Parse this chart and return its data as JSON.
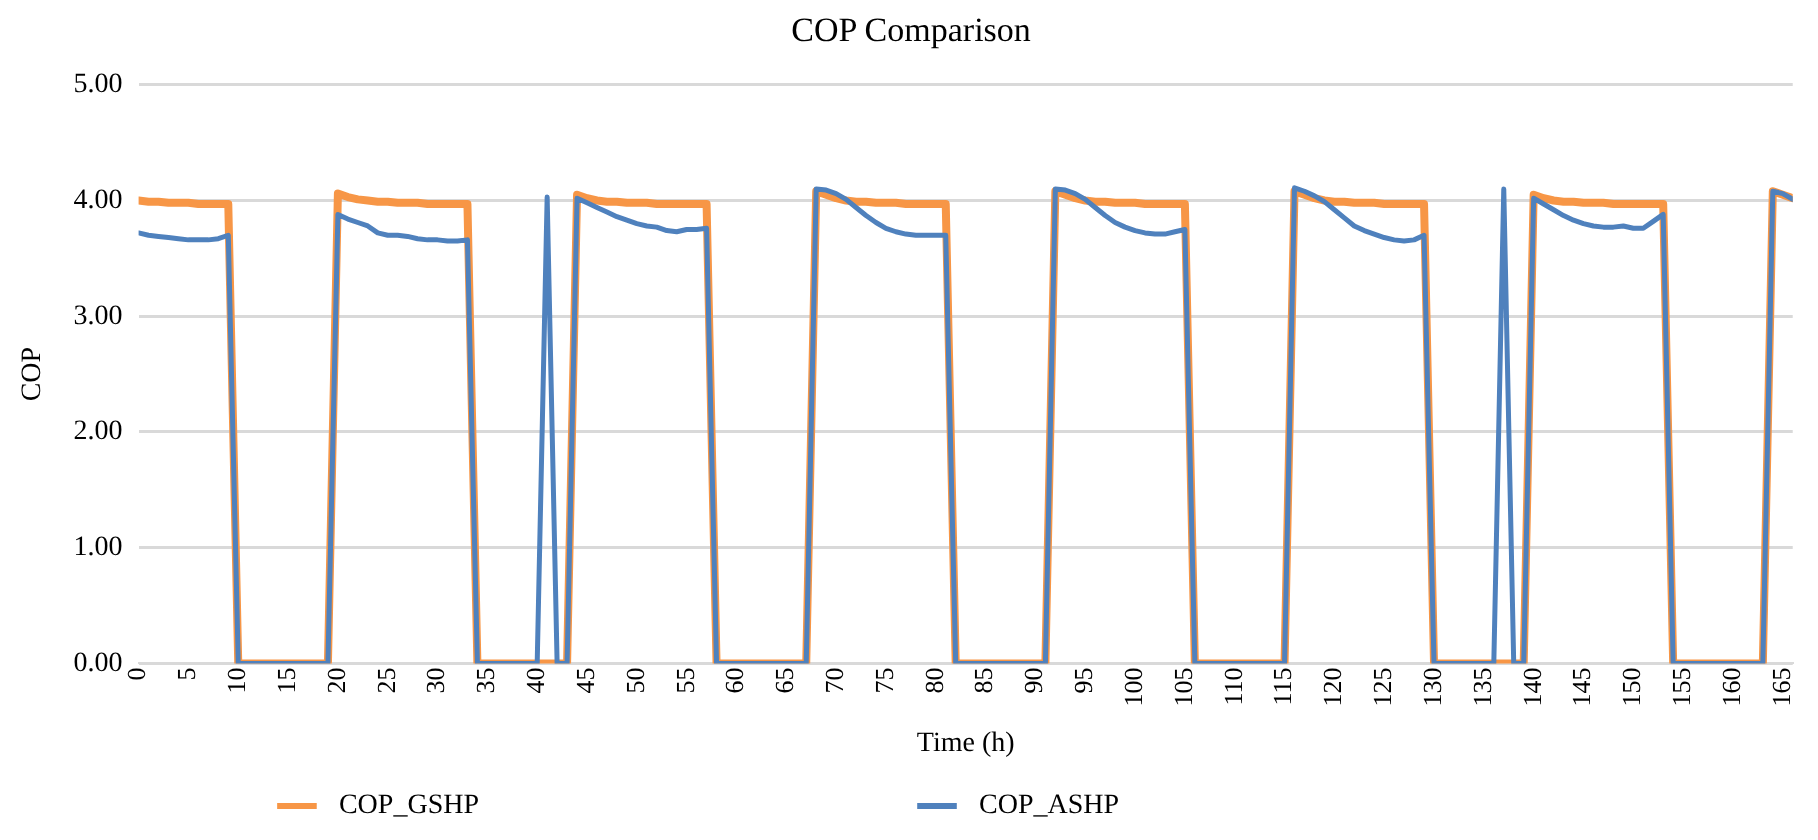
{
  "chart_data": {
    "type": "line",
    "title": "COP Comparison",
    "xlabel": "Time (h)",
    "ylabel": "COP",
    "x": [
      0,
      1,
      2,
      3,
      4,
      5,
      6,
      7,
      8,
      9,
      10,
      11,
      12,
      13,
      14,
      15,
      16,
      17,
      18,
      19,
      20,
      21,
      22,
      23,
      24,
      25,
      26,
      27,
      28,
      29,
      30,
      31,
      32,
      33,
      34,
      35,
      36,
      37,
      38,
      39,
      40,
      41,
      42,
      43,
      44,
      45,
      46,
      47,
      48,
      49,
      50,
      51,
      52,
      53,
      54,
      55,
      56,
      57,
      58,
      59,
      60,
      61,
      62,
      63,
      64,
      65,
      66,
      67,
      68,
      69,
      70,
      71,
      72,
      73,
      74,
      75,
      76,
      77,
      78,
      79,
      80,
      81,
      82,
      83,
      84,
      85,
      86,
      87,
      88,
      89,
      90,
      91,
      92,
      93,
      94,
      95,
      96,
      97,
      98,
      99,
      100,
      101,
      102,
      103,
      104,
      105,
      106,
      107,
      108,
      109,
      110,
      111,
      112,
      113,
      114,
      115,
      116,
      117,
      118,
      119,
      120,
      121,
      122,
      123,
      124,
      125,
      126,
      127,
      128,
      129,
      130,
      131,
      132,
      133,
      134,
      135,
      136,
      137,
      138,
      139,
      140,
      141,
      142,
      143,
      144,
      145,
      146,
      147,
      148,
      149,
      150,
      151,
      152,
      153,
      154,
      155,
      156,
      157,
      158,
      159,
      160,
      161,
      162,
      163,
      164,
      165,
      166
    ],
    "xlim": [
      0,
      166
    ],
    "xticks": [
      0,
      5,
      10,
      15,
      20,
      25,
      30,
      35,
      40,
      45,
      50,
      55,
      60,
      65,
      70,
      75,
      80,
      85,
      90,
      95,
      100,
      105,
      110,
      115,
      120,
      125,
      130,
      135,
      140,
      145,
      150,
      155,
      160,
      165
    ],
    "ylim": [
      0,
      5
    ],
    "yticks": [
      {
        "value": 0,
        "label": "0.00"
      },
      {
        "value": 1,
        "label": "1.00"
      },
      {
        "value": 2,
        "label": "2.00"
      },
      {
        "value": 3,
        "label": "3.00"
      },
      {
        "value": 4,
        "label": "4.00"
      },
      {
        "value": 5,
        "label": "5.00"
      }
    ],
    "grid": "y",
    "legend": "bottom",
    "marker": "none",
    "line_style": "solid",
    "series": [
      {
        "name": "COP_GSHP",
        "color": "#f79646",
        "values": [
          4.0,
          3.99,
          3.99,
          3.98,
          3.98,
          3.98,
          3.97,
          3.97,
          3.97,
          3.97,
          0,
          0,
          0,
          0,
          0,
          0,
          0,
          0,
          0,
          0,
          4.06,
          4.03,
          4.01,
          4.0,
          3.99,
          3.99,
          3.98,
          3.98,
          3.98,
          3.97,
          3.97,
          3.97,
          3.97,
          3.97,
          0,
          0,
          0,
          0,
          0,
          0,
          0,
          0,
          0,
          0,
          4.05,
          4.02,
          4.0,
          3.99,
          3.99,
          3.98,
          3.98,
          3.98,
          3.97,
          3.97,
          3.97,
          3.97,
          3.97,
          3.97,
          0,
          0,
          0,
          0,
          0,
          0,
          0,
          0,
          0,
          0,
          4.08,
          4.05,
          4.02,
          4.0,
          3.99,
          3.99,
          3.98,
          3.98,
          3.98,
          3.97,
          3.97,
          3.97,
          3.97,
          3.97,
          0,
          0,
          0,
          0,
          0,
          0,
          0,
          0,
          0,
          0,
          4.08,
          4.05,
          4.02,
          4.0,
          3.99,
          3.99,
          3.98,
          3.98,
          3.98,
          3.97,
          3.97,
          3.97,
          3.97,
          3.97,
          0,
          0,
          0,
          0,
          0,
          0,
          0,
          0,
          0,
          0,
          4.08,
          4.05,
          4.02,
          4.0,
          3.99,
          3.99,
          3.98,
          3.98,
          3.98,
          3.97,
          3.97,
          3.97,
          3.97,
          3.97,
          0,
          0,
          0,
          0,
          0,
          0,
          0,
          0,
          0,
          0,
          4.05,
          4.02,
          4.0,
          3.99,
          3.99,
          3.98,
          3.98,
          3.98,
          3.97,
          3.97,
          3.97,
          3.97,
          3.97,
          3.97,
          0,
          0,
          0,
          0,
          0,
          0,
          0,
          0,
          0,
          0,
          4.08,
          4.05,
          4.02
        ]
      },
      {
        "name": "COP_ASHP",
        "color": "#4f81bd",
        "values": [
          3.72,
          3.7,
          3.69,
          3.68,
          3.67,
          3.66,
          3.66,
          3.66,
          3.67,
          3.7,
          0,
          0,
          0,
          0,
          0,
          0,
          0,
          0,
          0,
          0,
          3.88,
          3.84,
          3.81,
          3.78,
          3.72,
          3.7,
          3.7,
          3.69,
          3.67,
          3.66,
          3.66,
          3.65,
          3.65,
          3.66,
          0,
          0,
          0,
          0,
          0,
          0,
          0,
          4.03,
          0,
          0,
          4.02,
          3.98,
          3.94,
          3.9,
          3.86,
          3.83,
          3.8,
          3.78,
          3.77,
          3.74,
          3.73,
          3.75,
          3.75,
          3.76,
          0,
          0,
          0,
          0,
          0,
          0,
          0,
          0,
          0,
          0,
          4.1,
          4.09,
          4.06,
          4.01,
          3.94,
          3.87,
          3.81,
          3.76,
          3.73,
          3.71,
          3.7,
          3.7,
          3.7,
          3.7,
          0,
          0,
          0,
          0,
          0,
          0,
          0,
          0,
          0,
          0,
          4.1,
          4.09,
          4.06,
          4.01,
          3.94,
          3.87,
          3.81,
          3.77,
          3.74,
          3.72,
          3.71,
          3.71,
          3.73,
          3.75,
          0,
          0,
          0,
          0,
          0,
          0,
          0,
          0,
          0,
          0,
          4.11,
          4.08,
          4.04,
          3.99,
          3.92,
          3.85,
          3.78,
          3.74,
          3.71,
          3.68,
          3.66,
          3.65,
          3.66,
          3.7,
          0,
          0,
          0,
          0,
          0,
          0,
          0,
          4.1,
          0,
          0,
          4.02,
          3.97,
          3.92,
          3.87,
          3.83,
          3.8,
          3.78,
          3.77,
          3.77,
          3.78,
          3.76,
          3.76,
          3.82,
          3.88,
          0,
          0,
          0,
          0,
          0,
          0,
          0,
          0,
          0,
          0,
          4.08,
          4.06,
          4.01
        ]
      }
    ]
  }
}
